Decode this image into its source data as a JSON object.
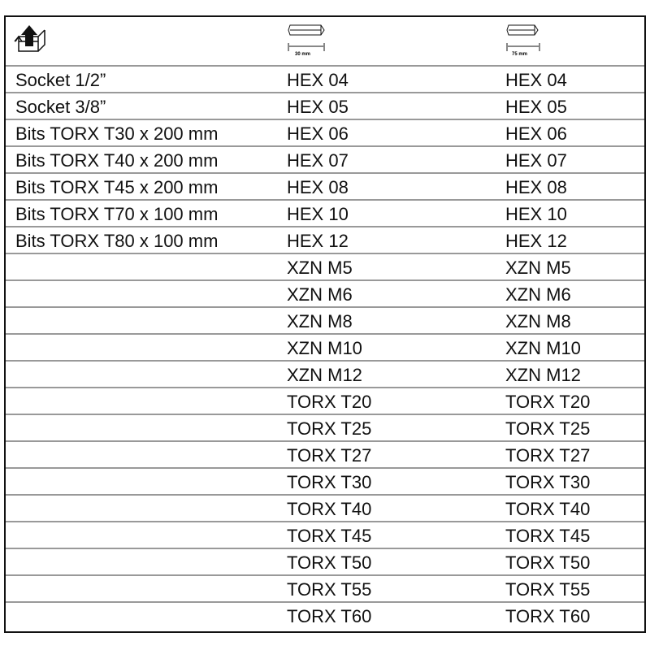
{
  "header": {
    "icon": "box-unpack-icon",
    "col1_length": "30 mm",
    "col2_length": "75 mm",
    "col_icon": "hex-bit-icon"
  },
  "rows": [
    [
      "Socket 1/2”",
      "HEX 04",
      "HEX 04"
    ],
    [
      "Socket 3/8”",
      "HEX 05",
      "HEX 05"
    ],
    [
      "Bits TORX T30 x 200 mm",
      "HEX 06",
      "HEX 06"
    ],
    [
      "Bits TORX T40 x 200 mm",
      "HEX 07",
      "HEX 07"
    ],
    [
      "Bits TORX T45 x 200 mm",
      "HEX 08",
      "HEX 08"
    ],
    [
      "Bits TORX T70 x 100 mm",
      "HEX 10",
      "HEX 10"
    ],
    [
      "Bits TORX T80 x 100 mm",
      "HEX 12",
      "HEX 12"
    ],
    [
      "",
      "XZN M5",
      "XZN M5"
    ],
    [
      "",
      "XZN M6",
      "XZN M6"
    ],
    [
      "",
      "XZN M8",
      "XZN M8"
    ],
    [
      "",
      "XZN M10",
      "XZN M10"
    ],
    [
      "",
      "XZN M12",
      "XZN M12"
    ],
    [
      "",
      "TORX T20",
      "TORX T20"
    ],
    [
      "",
      "TORX T25",
      "TORX T25"
    ],
    [
      "",
      "TORX T27",
      "TORX T27"
    ],
    [
      "",
      "TORX T30",
      "TORX T30"
    ],
    [
      "",
      "TORX T40",
      "TORX T40"
    ],
    [
      "",
      "TORX T45",
      "TORX T45"
    ],
    [
      "",
      "TORX T50",
      "TORX T50"
    ],
    [
      "",
      "TORX T55",
      "TORX T55"
    ],
    [
      "",
      "TORX T60",
      "TORX T60"
    ]
  ]
}
